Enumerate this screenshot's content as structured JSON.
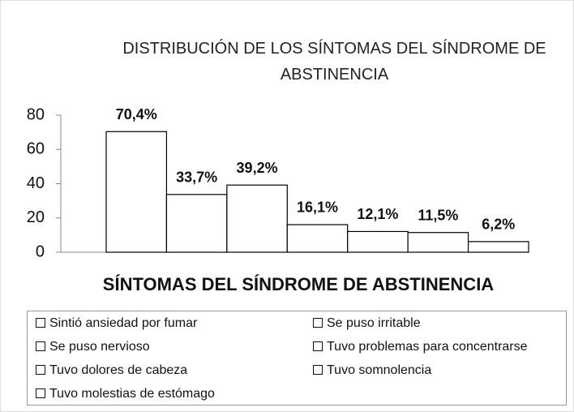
{
  "chart_data": {
    "type": "bar",
    "title": "DISTRIBUCIÓN DE LOS SÍNTOMAS DEL SÍNDROME DE ABSTINENCIA",
    "x_label": "SÍNTOMAS DEL SÍNDROME DE ABSTINENCIA",
    "categories": [
      "Sintió ansiedad por fumar",
      "Se puso irritable",
      "Se puso nervioso",
      "Tuvo problemas para concentrarse",
      "Tuvo dolores de cabeza",
      "Tuvo somnolencia",
      "Tuvo molestias de estómago"
    ],
    "values": [
      70.4,
      33.7,
      39.2,
      16.1,
      12.1,
      11.5,
      6.2
    ],
    "value_labels": [
      "70,4%",
      "33,7%",
      "39,2%",
      "16,1%",
      "12,1%",
      "11,5%",
      "6,2%"
    ],
    "color": "#ffffff",
    "ylim": [
      0,
      80
    ],
    "yticks": [
      0,
      20,
      40,
      60,
      80
    ],
    "legend": "bottom"
  }
}
